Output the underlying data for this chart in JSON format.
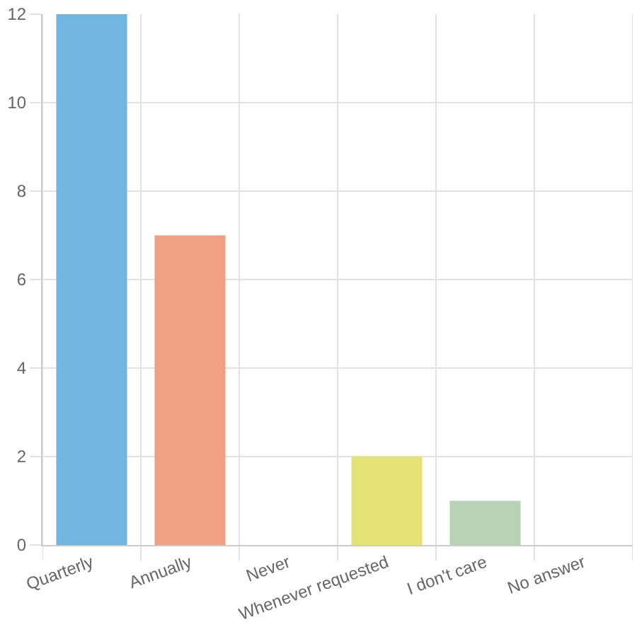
{
  "chart_data": {
    "type": "bar",
    "categories": [
      "Quarterly",
      "Annually",
      "Never",
      "Whenever requested",
      "I don't care",
      "No answer"
    ],
    "values": [
      12,
      7,
      0,
      2,
      1,
      0
    ],
    "colors": [
      "#71b4e0",
      "#f19f84",
      "#c5a4d8",
      "#e4e475",
      "#b6d4b5",
      "#f5c98a"
    ],
    "ylim": [
      0,
      12
    ],
    "yticks": [
      0,
      2,
      4,
      6,
      8,
      10,
      12
    ],
    "grid": true
  }
}
